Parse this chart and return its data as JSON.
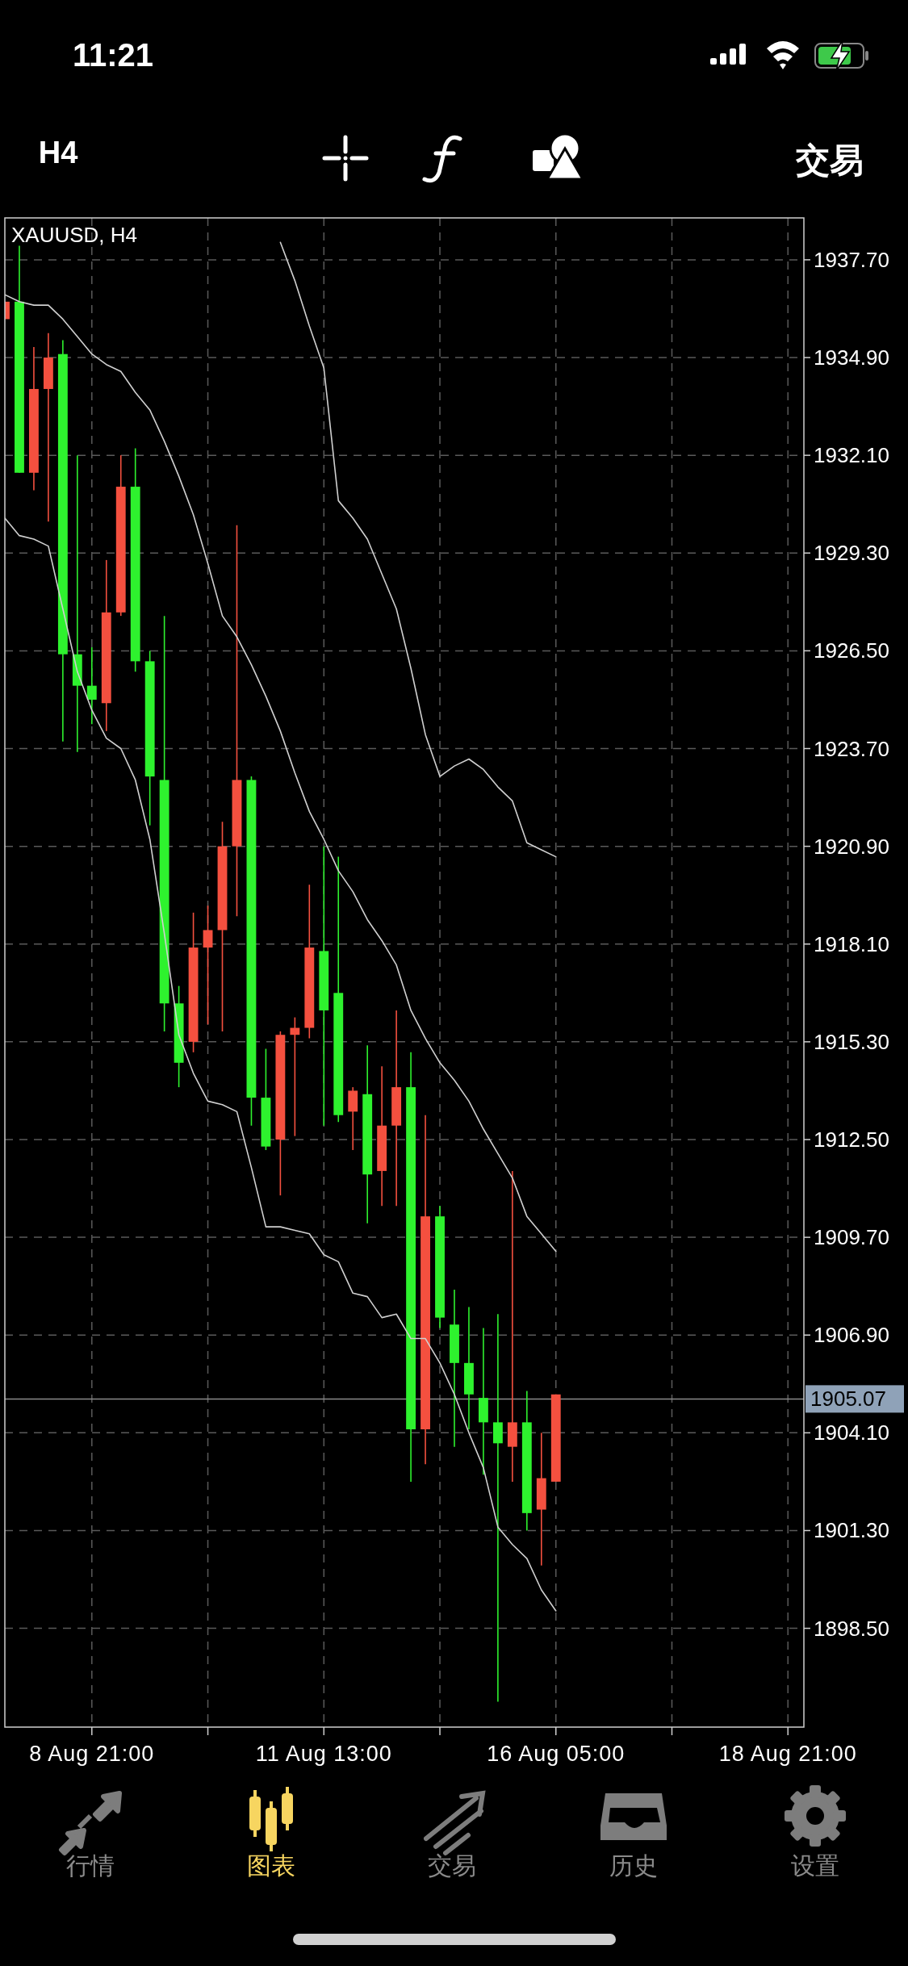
{
  "chart_data": {
    "type": "candlestick",
    "title": "XAUUSD, H4",
    "annotations": [
      "11:21",
      "H4",
      "交易",
      "行情",
      "图表",
      "交易",
      "历史",
      "设置"
    ],
    "categories": [
      null,
      null,
      null,
      null,
      null,
      null,
      "8 Aug 21:00",
      null,
      null,
      null,
      null,
      null,
      null,
      null,
      null,
      null,
      null,
      null,
      null,
      null,
      null,
      null,
      "11 Aug 13:00",
      null,
      null,
      null,
      null,
      null,
      null,
      null,
      null,
      null,
      null,
      null,
      null,
      null,
      null,
      null,
      "16 Aug 05:00",
      null,
      null,
      null,
      null,
      null,
      null,
      null,
      null,
      null,
      null,
      null,
      null,
      null,
      null,
      null,
      "18 Aug 21:00"
    ],
    "ylim": [
      1895.67,
      1938.9
    ],
    "yticks": [
      {
        "value": 1937.7,
        "label": "1937.70"
      },
      {
        "value": 1934.9,
        "label": "1934.90"
      },
      {
        "value": 1932.1,
        "label": "1932.10"
      },
      {
        "value": 1929.3,
        "label": "1929.30"
      },
      {
        "value": 1926.5,
        "label": "1926.50"
      },
      {
        "value": 1923.7,
        "label": "1923.70"
      },
      {
        "value": 1920.9,
        "label": "1920.90"
      },
      {
        "value": 1918.1,
        "label": "1918.10"
      },
      {
        "value": 1915.3,
        "label": "1915.30"
      },
      {
        "value": 1912.5,
        "label": "1912.50"
      },
      {
        "value": 1909.7,
        "label": "1909.70"
      },
      {
        "value": 1906.9,
        "label": "1906.90"
      },
      {
        "value": 1904.1,
        "label": "1904.10"
      },
      {
        "value": 1901.3,
        "label": "1901.30"
      },
      {
        "value": 1898.5,
        "label": "1898.50"
      }
    ],
    "grid": true,
    "ref_lines": [
      {
        "axis": "y",
        "value": 1905.07,
        "label": "1905.07",
        "color": "#8a8a8a"
      }
    ],
    "series": [
      {
        "type": "line",
        "color": "#d0d0d0",
        "values": [
          1936.7,
          1936.5,
          1936.4,
          1936.4,
          1936.0,
          1935.5,
          1935.0,
          1934.7,
          1934.5,
          1933.9,
          1933.4,
          1932.5,
          1931.5,
          1930.4,
          1929.0,
          1927.5,
          1926.9,
          1926.1,
          1925.2,
          1924.2,
          1923.0,
          1921.9,
          1921.1,
          1920.2,
          1919.6,
          1918.8,
          1918.2,
          1917.5,
          1916.2,
          1915.4,
          1914.7,
          1914.2,
          1913.6,
          1912.8,
          1912.1,
          1911.4,
          1910.3,
          1909.8,
          1909.3,
          null,
          null,
          null,
          null,
          null,
          null,
          null,
          null,
          null,
          null,
          null,
          null,
          null,
          null,
          null,
          null
        ]
      },
      {
        "type": "line",
        "color": "#d0d0d0",
        "values": [
          1930.3,
          1929.8,
          1929.7,
          1929.5,
          1927.7,
          1925.9,
          1924.8,
          1924.0,
          1923.7,
          1922.8,
          1921.1,
          1918.4,
          1915.5,
          1914.4,
          1913.6,
          1913.5,
          1913.3,
          1911.7,
          1910.0,
          1910.0,
          1909.9,
          1909.8,
          1909.2,
          1909.0,
          1908.1,
          1908.0,
          1907.4,
          1907.5,
          1906.8,
          1906.8,
          1906.1,
          1905.2,
          1904.1,
          1903.1,
          1901.4,
          1900.9,
          1900.5,
          1899.6,
          1899.0,
          null,
          null,
          null,
          null,
          null,
          null,
          null,
          null,
          null,
          null,
          null,
          null,
          null,
          null,
          null,
          null
        ]
      },
      {
        "type": "line",
        "color": "#d0d0d0",
        "values": [
          null,
          null,
          null,
          null,
          null,
          null,
          null,
          null,
          null,
          null,
          null,
          null,
          null,
          null,
          null,
          null,
          null,
          null,
          null,
          1938.2,
          1937.1,
          1935.8,
          1934.6,
          1930.8,
          1930.3,
          1929.7,
          1928.7,
          1927.7,
          1926.0,
          1924.1,
          1922.9,
          1923.2,
          1923.4,
          1923.1,
          1922.6,
          1922.2,
          1921.0,
          1920.8,
          1920.6,
          null,
          null,
          null,
          null,
          null,
          null,
          null,
          null,
          null,
          null,
          null,
          null,
          null,
          null,
          null,
          null
        ]
      }
    ],
    "colors": [
      "#f4503f",
      "#2ef22e",
      "#f4503f",
      "#f4503f",
      "#2ef22e",
      "#2ef22e",
      "#2ef22e",
      "#f4503f",
      "#f4503f",
      "#2ef22e",
      "#2ef22e",
      "#2ef22e",
      "#2ef22e",
      "#f4503f",
      "#f4503f",
      "#f4503f",
      "#f4503f",
      "#2ef22e",
      "#2ef22e",
      "#f4503f",
      "#f4503f",
      "#f4503f",
      "#2ef22e",
      "#2ef22e",
      "#f4503f",
      "#2ef22e",
      "#f4503f",
      "#f4503f",
      "#2ef22e",
      "#f4503f",
      "#2ef22e",
      "#2ef22e",
      "#2ef22e",
      "#2ef22e",
      "#2ef22e",
      "#f4503f",
      "#2ef22e",
      "#f4503f",
      "#f4503f",
      null,
      null,
      null,
      null,
      null,
      null,
      null,
      null,
      null,
      null,
      null,
      null,
      null,
      null,
      null,
      null
    ],
    "ohlc": [
      [
        1936.5,
        1936.5,
        1936.0,
        1936.0
      ],
      [
        1931.6,
        1938.1,
        1931.6,
        1936.5
      ],
      [
        1934.0,
        1935.2,
        1931.1,
        1931.6
      ],
      [
        1934.9,
        1935.6,
        1930.2,
        1934.0
      ],
      [
        1926.4,
        1935.4,
        1923.9,
        1935.0
      ],
      [
        1925.5,
        1932.1,
        1923.6,
        1926.4
      ],
      [
        1925.1,
        1926.6,
        1924.4,
        1925.5
      ],
      [
        1927.6,
        1929.1,
        1924.2,
        1925.0
      ],
      [
        1931.2,
        1932.1,
        1927.5,
        1927.6
      ],
      [
        1926.2,
        1932.3,
        1925.9,
        1931.2
      ],
      [
        1922.9,
        1926.5,
        1921.5,
        1926.2
      ],
      [
        1916.4,
        1927.5,
        1915.6,
        1922.8
      ],
      [
        1914.7,
        1916.9,
        1914.0,
        1916.4
      ],
      [
        1918.0,
        1919.0,
        1915.0,
        1915.3
      ],
      [
        1918.5,
        1919.2,
        1915.8,
        1918.0
      ],
      [
        1920.9,
        1921.6,
        1915.6,
        1918.5
      ],
      [
        1922.8,
        1930.1,
        1918.9,
        1920.9
      ],
      [
        1913.7,
        1922.9,
        1912.9,
        1922.8
      ],
      [
        1912.3,
        1915.1,
        1912.2,
        1913.7
      ],
      [
        1915.5,
        1915.6,
        1910.9,
        1912.5
      ],
      [
        1915.7,
        1916.0,
        1912.6,
        1915.5
      ],
      [
        1918.0,
        1919.8,
        1915.4,
        1915.7
      ],
      [
        1916.2,
        1920.9,
        1912.9,
        1917.9
      ],
      [
        1913.2,
        1920.6,
        1913.0,
        1916.7
      ],
      [
        1913.9,
        1914.0,
        1912.2,
        1913.3
      ],
      [
        1911.5,
        1915.2,
        1910.1,
        1913.8
      ],
      [
        1912.9,
        1914.6,
        1910.6,
        1911.6
      ],
      [
        1914.0,
        1916.2,
        1910.6,
        1912.9
      ],
      [
        1904.2,
        1915.0,
        1902.7,
        1914.0
      ],
      [
        1910.3,
        1913.2,
        1903.2,
        1904.2
      ],
      [
        1907.4,
        1910.6,
        1907.1,
        1910.3
      ],
      [
        1906.1,
        1908.2,
        1903.7,
        1907.2
      ],
      [
        1905.2,
        1907.7,
        1904.2,
        1906.1
      ],
      [
        1904.4,
        1907.1,
        1902.9,
        1905.1
      ],
      [
        1903.8,
        1907.5,
        1896.4,
        1904.4
      ],
      [
        1904.4,
        1911.6,
        1902.7,
        1903.7
      ],
      [
        1901.8,
        1905.3,
        1901.3,
        1904.4
      ],
      [
        1902.8,
        1904.1,
        1900.3,
        1901.9
      ],
      [
        1905.2,
        1905.2,
        1902.7,
        1902.7
      ],
      null,
      null,
      null,
      null,
      null,
      null,
      null,
      null,
      null,
      null,
      null,
      null,
      null,
      null,
      null,
      null
    ]
  }
}
